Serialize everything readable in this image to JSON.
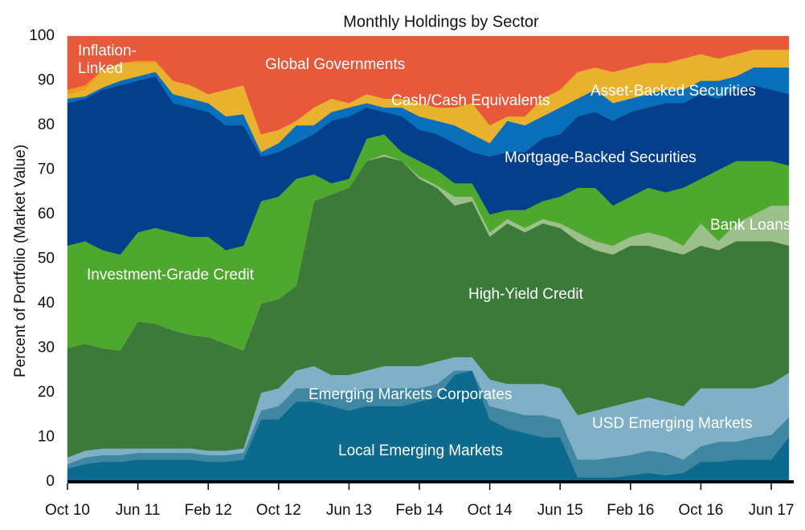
{
  "chart_data": {
    "type": "stacked_area",
    "title": "Monthly Holdings by Sector",
    "y_label": "Percent of Portfolio (Market Value)",
    "categories": [
      "Oct 10",
      null,
      null,
      null,
      "Jun 11",
      null,
      null,
      null,
      "Feb 12",
      null,
      null,
      null,
      "Oct 12",
      null,
      null,
      null,
      "Jun 13",
      null,
      null,
      null,
      "Feb 14",
      null,
      null,
      null,
      "Oct 14",
      null,
      null,
      null,
      "Jun 15",
      null,
      null,
      null,
      "Feb 16",
      null,
      null,
      null,
      "Oct 16",
      null,
      null,
      null,
      "Jun 17",
      null
    ],
    "ylim": [
      0,
      100
    ],
    "yticks": [
      0,
      10,
      20,
      30,
      40,
      50,
      60,
      70,
      80,
      90,
      100
    ],
    "series": [
      {
        "name": "Local Emerging Markets",
        "color": "#0b6a8d",
        "values": [
          3,
          4,
          4.5,
          4.5,
          5,
          5,
          5,
          5,
          4.5,
          4.5,
          5,
          14,
          14,
          18,
          18,
          17,
          16,
          17,
          17,
          17,
          18,
          19,
          24,
          25,
          14,
          12,
          11,
          10,
          10,
          1,
          1,
          1,
          1.5,
          2,
          1.5,
          2,
          4.5,
          4.5,
          5,
          5,
          5,
          10
        ]
      },
      {
        "name": "USD Emerging Markets",
        "color": "#3f87a3",
        "values": [
          1,
          1.5,
          1.5,
          1.5,
          1.5,
          1.5,
          1.5,
          1.5,
          1.5,
          1.5,
          1.5,
          2,
          3,
          3,
          3,
          3,
          4,
          4,
          4,
          4,
          3,
          3,
          1,
          0,
          3,
          4,
          4,
          5,
          4,
          4,
          4,
          4.5,
          4.5,
          5,
          5,
          3,
          3.5,
          4.5,
          4,
          5,
          5.5,
          4.5
        ]
      },
      {
        "name": "Emerging Markets Corporates",
        "color": "#7fb0c6",
        "values": [
          1.5,
          1.5,
          1.5,
          1.5,
          1,
          1,
          1,
          1,
          1,
          1,
          1,
          4,
          4,
          4,
          5,
          4,
          4,
          4,
          5,
          5,
          5,
          5,
          3,
          3,
          6,
          6,
          7,
          7,
          7,
          10,
          11,
          11.5,
          12,
          12,
          11.5,
          12,
          13,
          12,
          12,
          11,
          11.5,
          10
        ]
      },
      {
        "name": "High-Yield Credit",
        "color": "#3b7a38",
        "values": [
          24.5,
          24,
          22.5,
          22,
          28.5,
          28,
          26.5,
          25.5,
          25.5,
          24,
          22,
          20,
          20,
          19,
          37,
          40.5,
          42,
          47,
          47,
          46,
          42,
          39,
          34,
          35,
          32,
          36,
          34,
          36,
          36,
          39,
          36,
          34,
          35,
          34,
          34,
          34,
          32,
          31,
          33,
          33,
          32,
          28.5
        ]
      },
      {
        "name": "Bank Loans",
        "color": "#9cbf8b",
        "values": [
          0,
          0,
          0,
          0,
          0,
          0,
          0,
          0,
          0,
          0,
          0,
          0,
          0,
          0,
          0,
          0,
          0,
          0,
          0.5,
          0,
          0.5,
          0.5,
          2,
          1,
          1,
          1,
          1,
          1,
          1,
          2,
          2,
          2,
          2,
          3,
          3,
          2,
          5,
          2,
          4,
          6,
          8,
          9
        ]
      },
      {
        "name": "Investment-Grade Credit",
        "color": "#4fa82e",
        "values": [
          23,
          23,
          22,
          21.5,
          20,
          21.5,
          22,
          22,
          22.5,
          21,
          23.5,
          23,
          23,
          24,
          6,
          2.5,
          2,
          5,
          4.5,
          2,
          3.5,
          3.5,
          3,
          3,
          4,
          2,
          4,
          4,
          6,
          10,
          12,
          9,
          9,
          10,
          10,
          13,
          10,
          16,
          14,
          12,
          10,
          9
        ]
      },
      {
        "name": "Mortgage-Backed Securities",
        "color": "#053f8c",
        "values": [
          32,
          32,
          36,
          38,
          34,
          34,
          29,
          29,
          28,
          28,
          27,
          10,
          10,
          8,
          9,
          14,
          14,
          7,
          5,
          8,
          7,
          8,
          9,
          7,
          13,
          13,
          13,
          14,
          14,
          16,
          17,
          19,
          19,
          18,
          20,
          19,
          19,
          16,
          16,
          17,
          16,
          16
        ]
      },
      {
        "name": "Asset-Backed Securities",
        "color": "#0a6fba",
        "values": [
          1,
          0.5,
          0.5,
          1,
          1,
          1,
          2,
          2,
          2,
          2,
          2.5,
          1,
          2,
          4,
          2,
          2,
          2,
          1,
          1,
          2,
          3,
          3,
          4,
          4,
          3,
          7,
          6,
          5,
          6,
          4,
          5,
          4,
          3,
          3,
          3,
          3,
          3,
          4,
          3,
          4,
          5,
          6
        ]
      },
      {
        "name": "Cash/Cash Equivalents",
        "color": "#e8b22f",
        "values": [
          1,
          1.5,
          3.5,
          4,
          3,
          2,
          3,
          3,
          2,
          6,
          6.5,
          4,
          3,
          1,
          4,
          3,
          1,
          2,
          2,
          2,
          3,
          3,
          4,
          7,
          4,
          1,
          2,
          4,
          4,
          6,
          5,
          7,
          7,
          7,
          6,
          7,
          6,
          5,
          5,
          4,
          4,
          4
        ]
      },
      {
        "name": "Inflation-Linked",
        "color": "#f29a1e",
        "values": [
          1,
          1,
          0.5,
          0,
          0.5,
          0.5,
          0,
          0,
          0,
          0,
          0,
          0,
          0,
          0,
          0,
          0,
          0,
          0,
          0,
          0,
          0,
          0,
          0,
          0,
          0,
          0,
          0,
          0,
          0,
          0,
          0,
          0,
          0,
          0,
          0,
          0,
          0,
          0,
          0,
          0,
          0,
          0
        ]
      },
      {
        "name": "Global Governments",
        "color": "#e8583a",
        "values": [
          12,
          11,
          7.5,
          6,
          5.5,
          5.5,
          10,
          11,
          13,
          12,
          11,
          22,
          21,
          19,
          16,
          14,
          15,
          13,
          14,
          14,
          15,
          16,
          16,
          15,
          20,
          18,
          18,
          14,
          12,
          8,
          7,
          8,
          7,
          6,
          6,
          5,
          4,
          5,
          4,
          3,
          3,
          3
        ]
      }
    ]
  }
}
